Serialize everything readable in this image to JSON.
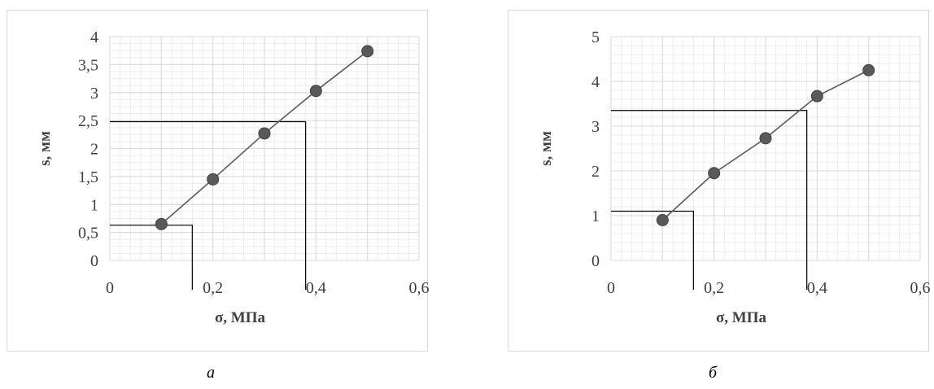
{
  "chart_data": [
    {
      "type": "line",
      "caption": "а",
      "xlabel": "σ, МПа",
      "ylabel": "s, мм",
      "xlim": [
        0,
        0.6
      ],
      "ylim": [
        0,
        4
      ],
      "x_ticks": [
        "0",
        "0,2",
        "0,4",
        "0,6"
      ],
      "y_ticks": [
        "0",
        "0,5",
        "1",
        "1,5",
        "2",
        "2,5",
        "3",
        "3,5",
        "4"
      ],
      "x_tick_values": [
        0,
        0.2,
        0.4,
        0.6
      ],
      "y_tick_values": [
        0,
        0.5,
        1,
        1.5,
        2,
        2.5,
        3,
        3.5,
        4
      ],
      "grid": true,
      "series": [
        {
          "x": [
            0.1,
            0.2,
            0.3,
            0.4,
            0.5
          ],
          "y": [
            0.65,
            1.45,
            2.27,
            3.03,
            3.74
          ]
        }
      ],
      "reference_lines": [
        {
          "x": 0.16,
          "y": 0.63
        },
        {
          "x": 0.38,
          "y": 2.48
        }
      ],
      "colors": {
        "line": "#595959",
        "marker": "#595959",
        "grid": "#d9d9d9",
        "reference": "#000000"
      }
    },
    {
      "type": "line",
      "caption": "б",
      "xlabel": "σ, МПа",
      "ylabel": "s, мм",
      "xlim": [
        0,
        0.6
      ],
      "ylim": [
        0,
        5
      ],
      "x_ticks": [
        "0",
        "0,2",
        "0,4",
        "0,6"
      ],
      "y_ticks": [
        "0",
        "1",
        "2",
        "3",
        "4",
        "5"
      ],
      "x_tick_values": [
        0,
        0.2,
        0.4,
        0.6
      ],
      "y_tick_values": [
        0,
        1,
        2,
        3,
        4,
        5
      ],
      "grid": true,
      "series": [
        {
          "x": [
            0.1,
            0.2,
            0.3,
            0.4,
            0.5
          ],
          "y": [
            0.9,
            1.95,
            2.73,
            3.67,
            4.25
          ]
        }
      ],
      "reference_lines": [
        {
          "x": 0.16,
          "y": 1.1
        },
        {
          "x": 0.38,
          "y": 3.35
        }
      ],
      "colors": {
        "line": "#595959",
        "marker": "#595959",
        "grid": "#d9d9d9",
        "reference": "#000000"
      }
    }
  ]
}
